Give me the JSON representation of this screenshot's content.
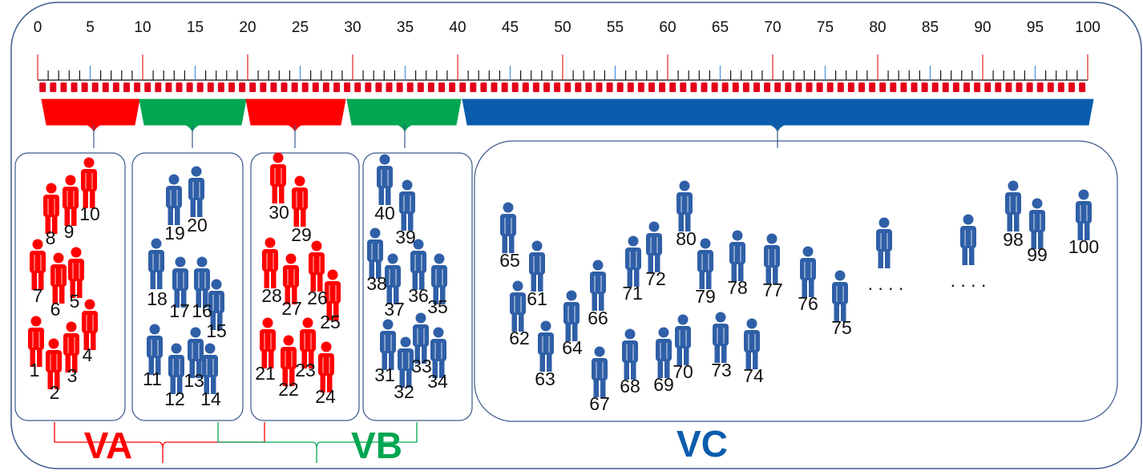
{
  "colors": {
    "red": "#ff0000",
    "green": "#00a651",
    "blue": "#0b5cad",
    "person_blue": "#2f5fa7",
    "tick_red": "#e02020",
    "tick_blue": "#4a90d9",
    "frame": "#3a5a8a"
  },
  "scale": {
    "min": 0,
    "max": 100,
    "labels": [
      "0",
      "5",
      "10",
      "15",
      "20",
      "25",
      "30",
      "35",
      "40",
      "45",
      "50",
      "55",
      "60",
      "65",
      "70",
      "75",
      "80",
      "85",
      "90",
      "95",
      "100"
    ]
  },
  "bands": [
    {
      "from": 0,
      "to": 10,
      "color": "red"
    },
    {
      "from": 10,
      "to": 20,
      "color": "green"
    },
    {
      "from": 20,
      "to": 30,
      "color": "red"
    },
    {
      "from": 30,
      "to": 40,
      "color": "green"
    },
    {
      "from": 40,
      "to": 100,
      "color": "blue"
    }
  ],
  "groups": [
    {
      "name": "group-1-10",
      "color": "red",
      "people": [
        {
          "label": "1"
        },
        {
          "label": "2"
        },
        {
          "label": "3"
        },
        {
          "label": "4"
        },
        {
          "label": "5"
        },
        {
          "label": "6"
        },
        {
          "label": "7"
        },
        {
          "label": "8"
        },
        {
          "label": "9"
        },
        {
          "label": "10"
        }
      ]
    },
    {
      "name": "group-11-20",
      "color": "person_blue",
      "people": [
        {
          "label": "11"
        },
        {
          "label": "12"
        },
        {
          "label": "13"
        },
        {
          "label": "14"
        },
        {
          "label": "15"
        },
        {
          "label": "16"
        },
        {
          "label": "17"
        },
        {
          "label": "18"
        },
        {
          "label": "19"
        },
        {
          "label": "20"
        }
      ]
    },
    {
      "name": "group-21-30",
      "color": "red",
      "people": [
        {
          "label": "21"
        },
        {
          "label": "22"
        },
        {
          "label": "23"
        },
        {
          "label": "24"
        },
        {
          "label": "25"
        },
        {
          "label": "26"
        },
        {
          "label": "27"
        },
        {
          "label": "28"
        },
        {
          "label": "29"
        },
        {
          "label": "30"
        }
      ]
    },
    {
      "name": "group-31-40",
      "color": "person_blue",
      "people": [
        {
          "label": "31"
        },
        {
          "label": "32"
        },
        {
          "label": "33"
        },
        {
          "label": "34"
        },
        {
          "label": "35"
        },
        {
          "label": "36"
        },
        {
          "label": "37"
        },
        {
          "label": "38"
        },
        {
          "label": "39"
        },
        {
          "label": "40"
        }
      ]
    },
    {
      "name": "group-61-100",
      "color": "person_blue",
      "people": [
        {
          "label": "65"
        },
        {
          "label": "61"
        },
        {
          "label": "62"
        },
        {
          "label": "63"
        },
        {
          "label": "64"
        },
        {
          "label": "66"
        },
        {
          "label": "67"
        },
        {
          "label": "68"
        },
        {
          "label": "71"
        },
        {
          "label": "72"
        },
        {
          "label": "69"
        },
        {
          "label": "70"
        },
        {
          "label": "80"
        },
        {
          "label": "79"
        },
        {
          "label": "73"
        },
        {
          "label": "78"
        },
        {
          "label": "74"
        },
        {
          "label": "77"
        },
        {
          "label": "76"
        },
        {
          "label": "75"
        },
        {
          "label": ""
        },
        {
          "label": ""
        },
        {
          "label": "98"
        },
        {
          "label": "99"
        },
        {
          "label": "100"
        }
      ],
      "ellipses": [
        ". . . .",
        ". . . ."
      ]
    }
  ],
  "brackets": [
    {
      "label": "VA",
      "color": "red"
    },
    {
      "label": "VB",
      "color": "green"
    },
    {
      "label": "VC",
      "color": "blue"
    }
  ]
}
